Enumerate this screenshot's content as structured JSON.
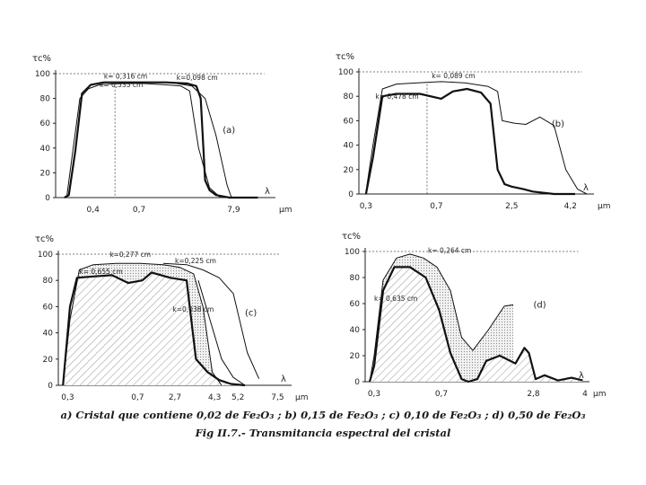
{
  "figure": {
    "caption_line1": "a) Cristal que contiene 0,02 de Fe₂O₃ ; b) 0,15 de Fe₂O₃ ; c) 0,10 de Fe₂O₃ ; d) 0,50 de Fe₂O₃",
    "caption_line2": "Fig II.7.- Transmitancia espectral del cristal"
  },
  "chart_data": [
    {
      "id": "a",
      "type": "line",
      "panel_label": "(a)",
      "ylabel": "τc%",
      "xlabel": "λ",
      "x_unit": "μm",
      "x_ticks": [
        "0,4",
        "0,7",
        "7,9"
      ],
      "y_ticks": [
        "0",
        "20",
        "40",
        "60",
        "80",
        "100"
      ],
      "ylim": [
        0,
        100
      ],
      "xlim": [
        0,
        10
      ],
      "series": [
        {
          "name": "k= 0,316 cm",
          "style": "thick",
          "x": [
            0.4,
            0.6,
            0.9,
            1.2,
            1.6,
            2.2,
            3.0,
            4.0,
            5.0,
            6.0,
            6.4,
            6.6,
            6.8,
            7.0,
            7.3,
            7.6,
            7.9,
            8.6,
            9.2
          ],
          "y": [
            0,
            2,
            38,
            84,
            91,
            93,
            93,
            93,
            93,
            92,
            90,
            80,
            14,
            6,
            2,
            1,
            0,
            0,
            0
          ]
        },
        {
          "name": "k= 0,535 cm",
          "style": "thin",
          "x": [
            0.5,
            0.8,
            1.1,
            1.5,
            2.0,
            3.0,
            4.0,
            5.0,
            5.7,
            6.1,
            6.5,
            7.0,
            7.5
          ],
          "y": [
            0,
            40,
            80,
            88,
            91,
            92,
            92,
            91,
            90,
            86,
            40,
            8,
            0
          ]
        },
        {
          "name": "k=0,098 cm",
          "style": "thin",
          "x": [
            5.5,
            6.2,
            6.8,
            7.3,
            7.8,
            8.0
          ],
          "y": [
            92,
            90,
            80,
            50,
            10,
            0
          ]
        }
      ],
      "dashed_ref_y": 100,
      "vline_x": 2.7
    },
    {
      "id": "b",
      "type": "line",
      "panel_label": "(b)",
      "ylabel": "τc%",
      "xlabel": "λ",
      "x_unit": "μm",
      "x_ticks": [
        "0,3",
        "0,7",
        "2,5",
        "4,2"
      ],
      "y_ticks": [
        "0",
        "20",
        "40",
        "60",
        "80",
        "100"
      ],
      "ylim": [
        0,
        100
      ],
      "xlim": [
        0,
        10
      ],
      "series": [
        {
          "name": "k= 0,089 cm",
          "style": "thin",
          "x": [
            0.3,
            0.6,
            1.0,
            1.6,
            2.5,
            3.5,
            4.5,
            5.5,
            5.9,
            6.1,
            6.6,
            7.1,
            7.7,
            8.3,
            8.8,
            9.3,
            9.7
          ],
          "y": [
            2,
            40,
            86,
            90,
            91,
            92,
            91,
            88,
            84,
            60,
            58,
            57,
            63,
            56,
            20,
            4,
            0
          ]
        },
        {
          "name": "k= 0,478 cm",
          "style": "thick",
          "x": [
            0.3,
            0.6,
            1.0,
            1.6,
            2.6,
            3.5,
            4.0,
            4.6,
            5.2,
            5.6,
            5.9,
            6.2,
            6.5,
            7.0,
            7.4,
            8.3,
            9.2
          ],
          "y": [
            0,
            30,
            80,
            82,
            82,
            78,
            84,
            86,
            83,
            74,
            20,
            8,
            6,
            4,
            2,
            0,
            0
          ]
        }
      ],
      "dashed_ref_y": 100,
      "vline_x": 2.9
    },
    {
      "id": "c",
      "type": "area",
      "panel_label": "(c)",
      "ylabel": "τc%",
      "xlabel": "λ",
      "x_unit": "μm",
      "x_ticks": [
        "0,3",
        "0,7",
        "2,7",
        "4,3",
        "5,2",
        "7,5"
      ],
      "y_ticks": [
        "0",
        "20",
        "40",
        "60",
        "80",
        "100"
      ],
      "ylim": [
        0,
        100
      ],
      "xlim": [
        0,
        10
      ],
      "series": [
        {
          "name": "k=0,277 cm",
          "style": "thin",
          "x": [
            0.2,
            0.5,
            0.9,
            1.5,
            2.5,
            3.5,
            4.5,
            5.2,
            5.8,
            6.2,
            6.6,
            7.0
          ],
          "y": [
            0,
            50,
            88,
            92,
            93,
            93,
            92,
            90,
            85,
            60,
            10,
            0
          ]
        },
        {
          "name": "k= 0,655 cm",
          "style": "thick",
          "x": [
            0.2,
            0.5,
            0.8,
            1.5,
            2.3,
            3.0,
            3.6,
            4.0,
            4.8,
            5.5,
            5.9,
            6.1,
            6.4,
            6.9,
            7.4,
            8.0
          ],
          "y": [
            0,
            60,
            82,
            83,
            84,
            78,
            80,
            86,
            82,
            80,
            20,
            16,
            10,
            4,
            1,
            0
          ]
        },
        {
          "name": "k=0,225 cm",
          "style": "thin",
          "x": [
            4.5,
            5.5,
            6.2,
            6.9,
            7.5,
            8.1,
            8.6
          ],
          "y": [
            93,
            92,
            88,
            82,
            70,
            25,
            5
          ]
        },
        {
          "name": "k=0,038 cm",
          "style": "thin",
          "x": [
            6.0,
            6.5,
            7.0,
            7.5,
            8.0
          ],
          "y": [
            80,
            50,
            20,
            6,
            0
          ]
        }
      ],
      "dashed_ref_y": 100
    },
    {
      "id": "d",
      "type": "area",
      "panel_label": "(d)",
      "ylabel": "τc%",
      "xlabel": "λ",
      "x_unit": "μm",
      "x_ticks": [
        "0,3",
        "0,7",
        "2,8",
        "4"
      ],
      "y_ticks": [
        "0",
        "20",
        "40",
        "60",
        "80",
        "100"
      ],
      "ylim": [
        0,
        100
      ],
      "xlim": [
        0,
        10
      ],
      "series": [
        {
          "name": "k= 0,264 cm",
          "style": "thin",
          "x": [
            0.2,
            0.4,
            0.8,
            1.4,
            2.0,
            2.6,
            3.2,
            3.8,
            4.3,
            4.8,
            5.5,
            6.2,
            6.6
          ],
          "y": [
            0,
            20,
            78,
            95,
            98,
            95,
            88,
            70,
            34,
            24,
            40,
            58,
            59
          ]
        },
        {
          "name": "k= 0,635 cm",
          "style": "thick",
          "x": [
            0.2,
            0.4,
            0.8,
            1.3,
            2.0,
            2.7,
            3.3,
            3.8,
            4.3,
            4.6,
            5.0,
            5.4,
            6.0,
            6.7,
            7.1,
            7.3,
            7.6,
            8.0,
            8.6,
            9.2,
            9.7
          ],
          "y": [
            0,
            12,
            70,
            88,
            88,
            80,
            55,
            22,
            2,
            0,
            2,
            16,
            20,
            14,
            26,
            22,
            2,
            5,
            1,
            3,
            1
          ]
        }
      ],
      "dashed_ref_y": 100
    }
  ]
}
